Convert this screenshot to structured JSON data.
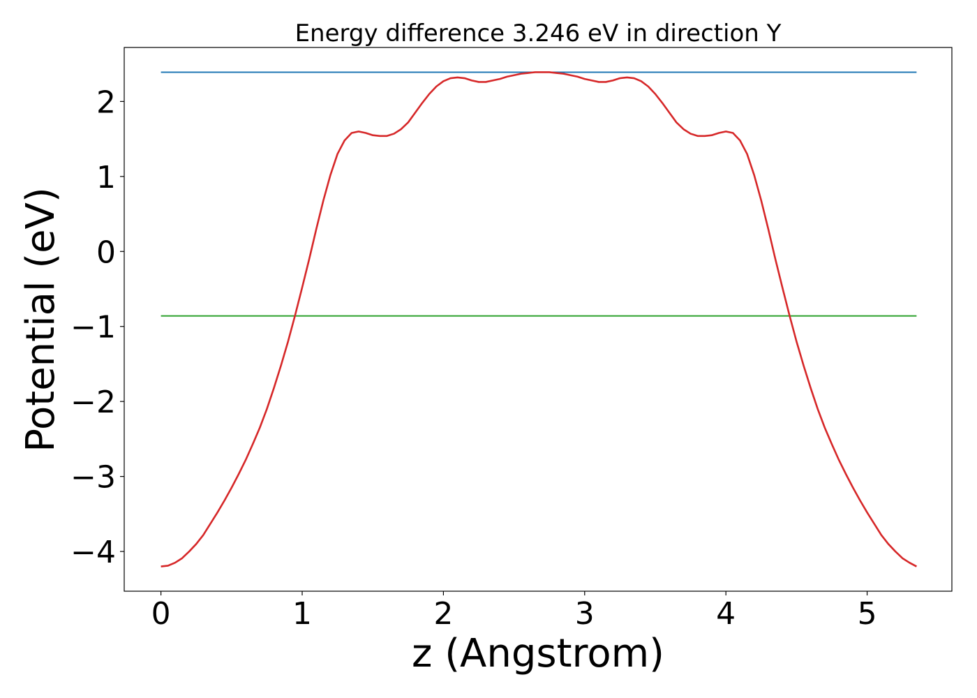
{
  "chart_data": {
    "type": "line",
    "title": "Energy difference 3.246 eV in direction Y",
    "xlabel": "z (Angstrom)",
    "ylabel": "Potential (eV)",
    "xlim": [
      -0.26,
      5.6
    ],
    "ylim": [
      -4.53,
      2.72
    ],
    "xticks": [
      0,
      1,
      2,
      3,
      4,
      5
    ],
    "yticks": [
      -4,
      -3,
      -2,
      -1,
      0,
      1,
      2
    ],
    "xtick_labels": [
      "0",
      "1",
      "2",
      "3",
      "4",
      "5"
    ],
    "ytick_labels": [
      "−4",
      "−3",
      "−2",
      "−1",
      "0",
      "1",
      "2"
    ],
    "grid": false,
    "series": [
      {
        "color": "#d62728",
        "x": [
          0,
          0.05,
          0.1,
          0.15,
          0.2,
          0.25,
          0.3,
          0.35,
          0.4,
          0.45,
          0.5,
          0.55,
          0.6,
          0.65,
          0.7,
          0.75,
          0.8,
          0.85,
          0.9,
          0.95,
          1.0,
          1.05,
          1.1,
          1.15,
          1.2,
          1.25,
          1.3,
          1.35,
          1.4,
          1.45,
          1.5,
          1.55,
          1.6,
          1.65,
          1.7,
          1.75,
          1.8,
          1.85,
          1.9,
          1.95,
          2.0,
          2.05,
          2.1,
          2.15,
          2.2,
          2.25,
          2.3,
          2.35,
          2.4,
          2.45,
          2.5,
          2.55,
          2.6,
          2.65,
          2.7,
          2.75,
          2.8,
          2.85,
          2.9,
          2.95,
          3.0,
          3.05,
          3.1,
          3.15,
          3.2,
          3.25,
          3.3,
          3.35,
          3.4,
          3.45,
          3.5,
          3.55,
          3.6,
          3.65,
          3.7,
          3.75,
          3.8,
          3.85,
          3.9,
          3.95,
          4.0,
          4.05,
          4.1,
          4.15,
          4.2,
          4.25,
          4.3,
          4.35,
          4.4,
          4.45,
          4.5,
          4.55,
          4.6,
          4.65,
          4.7,
          4.75,
          4.8,
          4.85,
          4.9,
          4.95,
          5.0,
          5.05,
          5.1,
          5.15,
          5.2,
          5.25,
          5.3,
          5.35
        ],
        "y": [
          -4.2,
          -4.19,
          -4.15,
          -4.09,
          -4.0,
          -3.9,
          -3.78,
          -3.63,
          -3.48,
          -3.32,
          -3.15,
          -2.97,
          -2.78,
          -2.57,
          -2.35,
          -2.1,
          -1.82,
          -1.52,
          -1.2,
          -0.85,
          -0.48,
          -0.1,
          0.3,
          0.68,
          1.02,
          1.3,
          1.48,
          1.58,
          1.6,
          1.58,
          1.55,
          1.54,
          1.54,
          1.57,
          1.63,
          1.72,
          1.85,
          1.98,
          2.1,
          2.2,
          2.27,
          2.31,
          2.32,
          2.31,
          2.28,
          2.26,
          2.26,
          2.28,
          2.3,
          2.33,
          2.35,
          2.37,
          2.38,
          2.39,
          2.39,
          2.39,
          2.38,
          2.37,
          2.35,
          2.33,
          2.3,
          2.28,
          2.26,
          2.26,
          2.28,
          2.31,
          2.32,
          2.31,
          2.27,
          2.2,
          2.1,
          1.98,
          1.85,
          1.72,
          1.63,
          1.57,
          1.54,
          1.54,
          1.55,
          1.58,
          1.6,
          1.58,
          1.48,
          1.3,
          1.02,
          0.68,
          0.3,
          -0.1,
          -0.48,
          -0.85,
          -1.2,
          -1.52,
          -1.82,
          -2.1,
          -2.35,
          -2.57,
          -2.78,
          -2.97,
          -3.15,
          -3.32,
          -3.48,
          -3.63,
          -3.78,
          -3.9,
          -4.0,
          -4.09,
          -4.15,
          -4.2
        ]
      },
      {
        "color": "#1f77b4",
        "type": "hline",
        "x": [
          0,
          5.35
        ],
        "y": [
          2.39,
          2.39
        ]
      },
      {
        "color": "#2ca02c",
        "type": "hline",
        "x": [
          0,
          5.35
        ],
        "y": [
          -0.86,
          -0.86
        ]
      }
    ]
  }
}
